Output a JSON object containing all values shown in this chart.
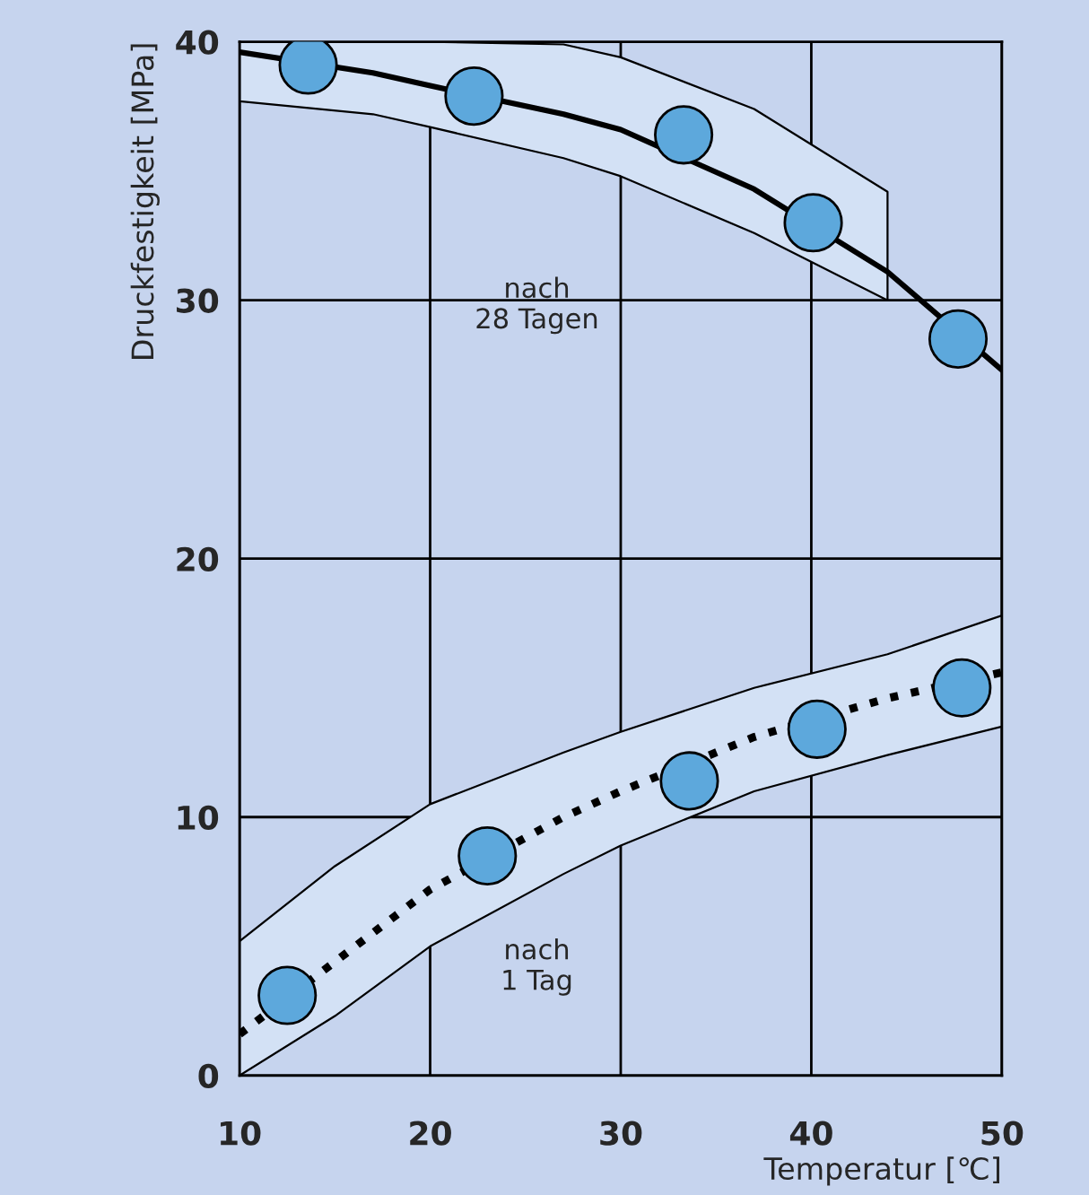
{
  "chart_data": {
    "type": "scatter",
    "xlabel": "Temperatur [℃]",
    "ylabel": "Druckfestigkeit [MPa]",
    "xlim": [
      10,
      50
    ],
    "ylim": [
      0,
      40
    ],
    "xticks": [
      10,
      20,
      30,
      40,
      50
    ],
    "yticks": [
      0,
      10,
      20,
      30,
      40
    ],
    "grid": true,
    "series": [
      {
        "type": "line",
        "color": "#000000",
        "line_style": "dotted",
        "marker": "none",
        "x": [
          10,
          15,
          20,
          27,
          30,
          37,
          44,
          50
        ],
        "values": [
          1.6,
          4.4,
          7.2,
          10.0,
          11.0,
          13.1,
          14.6,
          15.6
        ],
        "lower": [
          0,
          2.3,
          5.0,
          7.8,
          8.9,
          11.0,
          12.4,
          13.5
        ],
        "upper": [
          5.2,
          8.1,
          10.5,
          12.5,
          13.3,
          15.0,
          16.3,
          17.8
        ]
      },
      {
        "type": "line",
        "color": "#000000",
        "line_style": "solid",
        "marker": "none",
        "x": [
          10,
          17,
          20,
          27,
          30,
          37,
          44,
          50
        ],
        "values": [
          39.6,
          38.8,
          38.3,
          37.2,
          36.6,
          34.3,
          31.1,
          27.3
        ],
        "lower": [
          37.7,
          37.2,
          36.7,
          35.5,
          34.8,
          32.6,
          30.0,
          null
        ],
        "upper": [
          40,
          40,
          40,
          39.9,
          39.4,
          37.4,
          34.2,
          null
        ]
      },
      {
        "color": "#5da8dc",
        "marker": "circle",
        "x": [
          13.6,
          22.3,
          33.3,
          40.1,
          47.7
        ],
        "values": [
          39.1,
          37.9,
          36.4,
          33.0,
          28.5
        ]
      },
      {
        "color": "#5da8dc",
        "marker": "circle",
        "x": [
          12.5,
          23.0,
          33.6,
          40.3,
          47.9
        ],
        "values": [
          3.1,
          8.5,
          11.4,
          13.4,
          15.0
        ]
      }
    ],
    "annotations": [
      "nach\n28 Tagen",
      "nach\n1 Tag"
    ]
  }
}
